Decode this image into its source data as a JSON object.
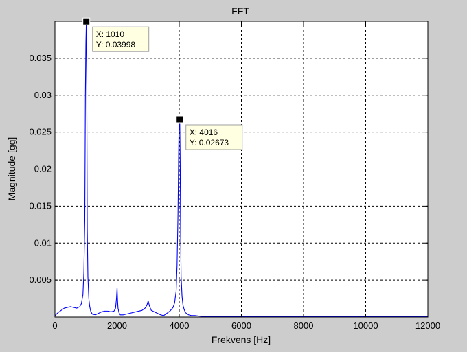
{
  "chart_data": {
    "type": "line",
    "title": "FFT",
    "xlabel": "Frekvens [Hz]",
    "ylabel": "Magnitude [gg]",
    "xlim": [
      0,
      12000
    ],
    "ylim": [
      0,
      0.04
    ],
    "grid": true,
    "x_ticks": [
      0,
      2000,
      4000,
      6000,
      8000,
      10000,
      12000
    ],
    "y_ticks": [
      0.005,
      0.01,
      0.015,
      0.02,
      0.025,
      0.03,
      0.035
    ],
    "x_tick_labels": [
      "0",
      "2000",
      "4000",
      "6000",
      "8000",
      "10000",
      "12000"
    ],
    "y_tick_labels": [
      "0.005",
      "0.01",
      "0.015",
      "0.02",
      "0.025",
      "0.03",
      "0.035"
    ],
    "series": [
      {
        "color": "#0000ff",
        "x": [
          0,
          100,
          200,
          300,
          400,
          500,
          600,
          700,
          800,
          850,
          900,
          930,
          960,
          980,
          995,
          1010,
          1025,
          1040,
          1060,
          1090,
          1120,
          1150,
          1200,
          1300,
          1400,
          1500,
          1600,
          1700,
          1800,
          1900,
          1950,
          1980,
          2000,
          2015,
          2030,
          2060,
          2100,
          2200,
          2400,
          2600,
          2800,
          2900,
          2960,
          3000,
          3040,
          3100,
          3200,
          3300,
          3400,
          3500,
          3600,
          3700,
          3800,
          3850,
          3900,
          3930,
          3960,
          3980,
          3995,
          4016,
          4030,
          4045,
          4060,
          4090,
          4120,
          4160,
          4200,
          4300,
          4400,
          4500,
          4700,
          5000,
          5500,
          6000,
          7000,
          8000,
          9000,
          10000,
          11000,
          12000
        ],
        "y": [
          0.0002,
          0.0006,
          0.0009,
          0.0012,
          0.0013,
          0.0014,
          0.0013,
          0.0012,
          0.0014,
          0.0018,
          0.003,
          0.006,
          0.013,
          0.03,
          0.037,
          0.03998,
          0.03,
          0.012,
          0.0055,
          0.0025,
          0.0014,
          0.0008,
          0.0004,
          0.0003,
          0.0005,
          0.0007,
          0.0008,
          0.0008,
          0.0007,
          0.0008,
          0.0012,
          0.0025,
          0.004,
          0.0022,
          0.0012,
          0.0006,
          0.0003,
          0.0003,
          0.0005,
          0.0007,
          0.0009,
          0.0012,
          0.0016,
          0.0022,
          0.0015,
          0.0009,
          0.0007,
          0.0005,
          0.0003,
          0.0002,
          0.0005,
          0.0008,
          0.0013,
          0.0019,
          0.0035,
          0.007,
          0.014,
          0.022,
          0.026,
          0.02673,
          0.021,
          0.011,
          0.0055,
          0.0028,
          0.0016,
          0.001,
          0.0006,
          0.0003,
          0.0002,
          0.0002,
          0.0001,
          0.0001,
          0.0001,
          0.0001,
          0.0001,
          0.0001,
          0.0001,
          0.0001,
          0.0001,
          0.0001
        ]
      }
    ],
    "annotations": [
      {
        "x": 1010,
        "y": 0.03998,
        "line1": "X: 1010",
        "line2": "Y: 0.03998"
      },
      {
        "x": 4016,
        "y": 0.02673,
        "line1": "X: 4016",
        "line2": "Y: 0.02673"
      }
    ]
  },
  "colors": {
    "figure_background": "#cdcdcd",
    "axes_background": "#ffffff",
    "line": "#0000ff",
    "datatip_background": "#ffffe1",
    "grid": "#000000"
  }
}
